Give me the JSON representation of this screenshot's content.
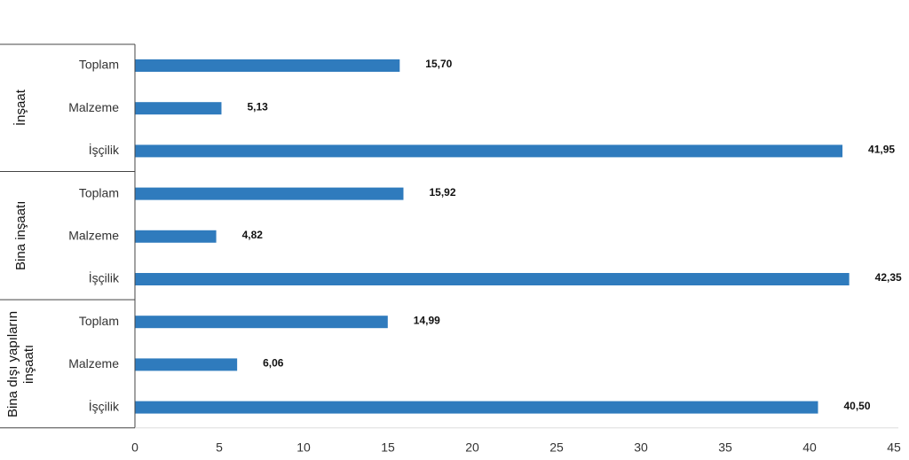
{
  "chart_data": {
    "type": "bar",
    "orientation": "horizontal",
    "color": "#2f7bbd",
    "groups": [
      {
        "name": "İnşaat",
        "categories": [
          "Toplam",
          "Malzeme",
          "İşçilik"
        ],
        "values": [
          15.7,
          5.13,
          41.95
        ],
        "value_labels": [
          "15,70",
          "5,13",
          "41,95"
        ]
      },
      {
        "name": "Bina inşaatı",
        "categories": [
          "Toplam",
          "Malzeme",
          "İşçilik"
        ],
        "values": [
          15.92,
          4.82,
          42.35
        ],
        "value_labels": [
          "15,92",
          "4,82",
          "42,35"
        ]
      },
      {
        "name": "Bina dışı yapıların inşaatı",
        "categories": [
          "Toplam",
          "Malzeme",
          "İşçilik"
        ],
        "values": [
          14.99,
          6.06,
          40.5
        ],
        "value_labels": [
          "14,99",
          "6,06",
          "40,50"
        ]
      }
    ],
    "xlim": [
      0,
      45
    ],
    "xticks": [
      0,
      5,
      10,
      15,
      20,
      25,
      30,
      35,
      40,
      45
    ],
    "grid": false
  }
}
